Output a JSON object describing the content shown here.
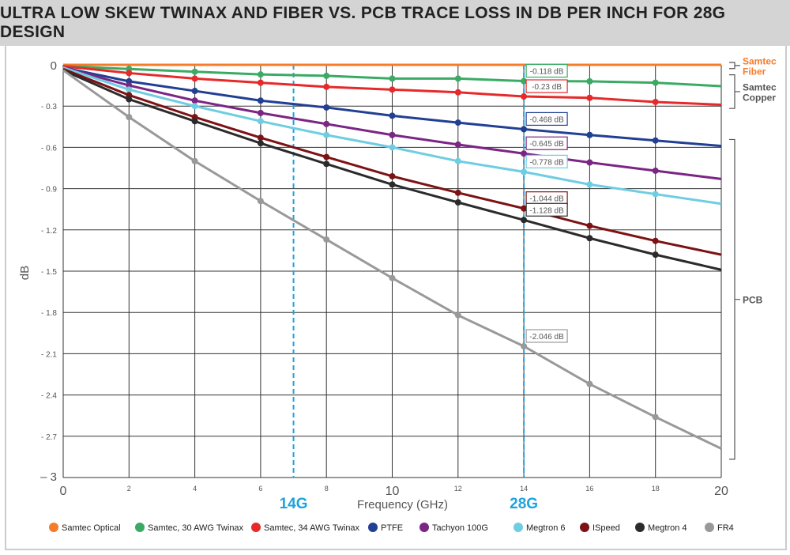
{
  "chart_data": {
    "type": "line",
    "title": "ULTRA LOW SKEW TWINAX AND FIBER VS. PCB TRACE LOSS IN DB PER INCH FOR 28G DESIGN",
    "xlabel": "Frequency (GHz)",
    "ylabel": "dB",
    "xlim": [
      0,
      20
    ],
    "ylim": [
      -3,
      0
    ],
    "grid": true,
    "legend_position": "bottom",
    "x": [
      0,
      2,
      4,
      6,
      8,
      10,
      12,
      14,
      16,
      18,
      20
    ],
    "x_ticks": [
      "0",
      "2",
      "4",
      "6",
      "8",
      "10",
      "12",
      "14",
      "16",
      "18",
      "20"
    ],
    "y_ticks": [
      0,
      -0.3,
      -0.6,
      -0.9,
      -1.2,
      -1.5,
      -1.8,
      -2.1,
      -2.4,
      -2.7,
      -3
    ],
    "y_tick_labels": [
      "0",
      "- 0.3",
      "- 0.6",
      "- 0.9",
      "- 1.2",
      "- 1.5",
      "- 1.8",
      "- 2.1",
      "- 2.4",
      "- 2.7",
      "– 3"
    ],
    "markers": [
      {
        "label": "14G",
        "x": 7,
        "color": "#1ea3dc"
      },
      {
        "label": "28G",
        "x": 14,
        "color": "#1ea3dc"
      }
    ],
    "series": [
      {
        "name": "Samtec Optical",
        "color": "#f47c2a",
        "markers": false,
        "values": [
          0,
          0,
          0,
          0,
          0,
          0,
          0,
          0,
          0,
          0,
          0
        ]
      },
      {
        "name": "Samtec, 30 AWG Twinax",
        "color": "#3aaa64",
        "markers": true,
        "values": [
          -0.01,
          -0.03,
          -0.05,
          -0.07,
          -0.08,
          -0.1,
          -0.1,
          -0.118,
          -0.12,
          -0.13,
          -0.155
        ],
        "annotation": "-0.118 dB"
      },
      {
        "name": "Samtec, 34 AWG Twinax",
        "color": "#e62a2a",
        "markers": true,
        "values": [
          -0.01,
          -0.06,
          -0.1,
          -0.13,
          -0.16,
          -0.18,
          -0.2,
          -0.23,
          -0.24,
          -0.27,
          -0.29
        ],
        "annotation": "-0.23 dB"
      },
      {
        "name": "PTFE",
        "color": "#213f93",
        "markers": true,
        "values": [
          -0.02,
          -0.12,
          -0.19,
          -0.26,
          -0.31,
          -0.37,
          -0.42,
          -0.468,
          -0.51,
          -0.55,
          -0.59
        ],
        "annotation": "-0.468 dB"
      },
      {
        "name": "Tachyon 100G",
        "color": "#7b2584",
        "markers": true,
        "values": [
          -0.02,
          -0.15,
          -0.26,
          -0.35,
          -0.43,
          -0.51,
          -0.58,
          -0.645,
          -0.71,
          -0.77,
          -0.83
        ],
        "annotation": "-0.645 dB"
      },
      {
        "name": "Megtron 6",
        "color": "#6fcde2",
        "markers": true,
        "values": [
          -0.02,
          -0.18,
          -0.3,
          -0.41,
          -0.51,
          -0.6,
          -0.7,
          -0.778,
          -0.87,
          -0.94,
          -1.01
        ],
        "annotation": "-0.778 dB"
      },
      {
        "name": "ISpeed",
        "color": "#7d1214",
        "markers": true,
        "values": [
          -0.03,
          -0.22,
          -0.38,
          -0.53,
          -0.67,
          -0.81,
          -0.93,
          -1.044,
          -1.17,
          -1.28,
          -1.38
        ],
        "annotation": "-1.044 dB"
      },
      {
        "name": "Megtron 4",
        "color": "#2b2b2b",
        "markers": true,
        "values": [
          -0.04,
          -0.25,
          -0.41,
          -0.57,
          -0.72,
          -0.87,
          -1.0,
          -1.128,
          -1.26,
          -1.38,
          -1.49
        ],
        "annotation": "-1.128 dB"
      },
      {
        "name": "FR4",
        "color": "#999999",
        "markers": true,
        "values": [
          -0.04,
          -0.38,
          -0.7,
          -0.99,
          -1.27,
          -1.55,
          -1.82,
          -2.046,
          -2.32,
          -2.56,
          -2.79
        ],
        "annotation": "-2.046 dB"
      }
    ],
    "groups": [
      {
        "label_lines": [
          "Samtec",
          "Fiber"
        ],
        "color": "#f47c2a",
        "range": [
          0,
          -0.01
        ]
      },
      {
        "label_lines": [
          "Samtec",
          "Copper"
        ],
        "color": "#555555",
        "range": [
          -0.09,
          -0.3
        ]
      },
      {
        "label_lines": [
          "PCB"
        ],
        "color": "#555555",
        "range": [
          -0.56,
          -2.85
        ]
      }
    ]
  }
}
